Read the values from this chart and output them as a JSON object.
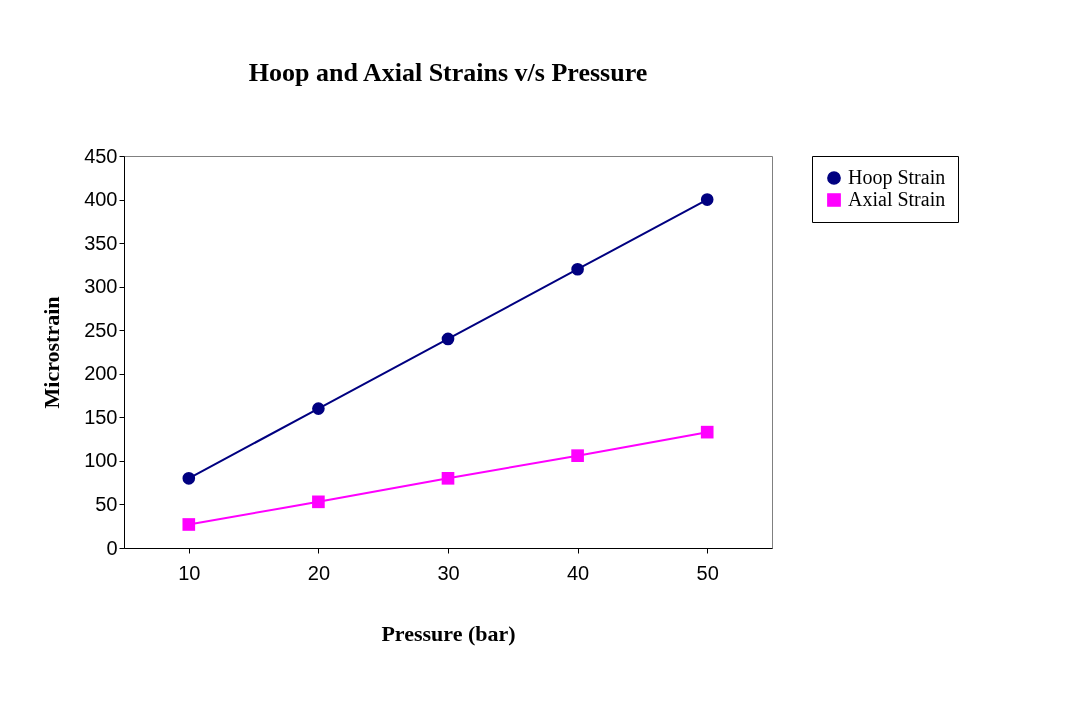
{
  "chart_data": {
    "type": "line",
    "title": "Hoop and Axial Strains v/s Pressure",
    "xlabel": "Pressure (bar)",
    "ylabel": "Microstrain",
    "categories": [
      "10",
      "20",
      "30",
      "40",
      "50"
    ],
    "series": [
      {
        "name": "Hoop Strain",
        "color": "#000080",
        "marker": "circle",
        "values": [
          80,
          160,
          240,
          320,
          400
        ]
      },
      {
        "name": "Axial Strain",
        "color": "#ff00ff",
        "marker": "square",
        "values": [
          27,
          53,
          80,
          106,
          133
        ]
      }
    ],
    "ylim": [
      0,
      450
    ],
    "yticks": [
      0,
      50,
      100,
      150,
      200,
      250,
      300,
      350,
      400,
      450
    ],
    "grid": false,
    "legend": "right",
    "line_style": "solid"
  }
}
